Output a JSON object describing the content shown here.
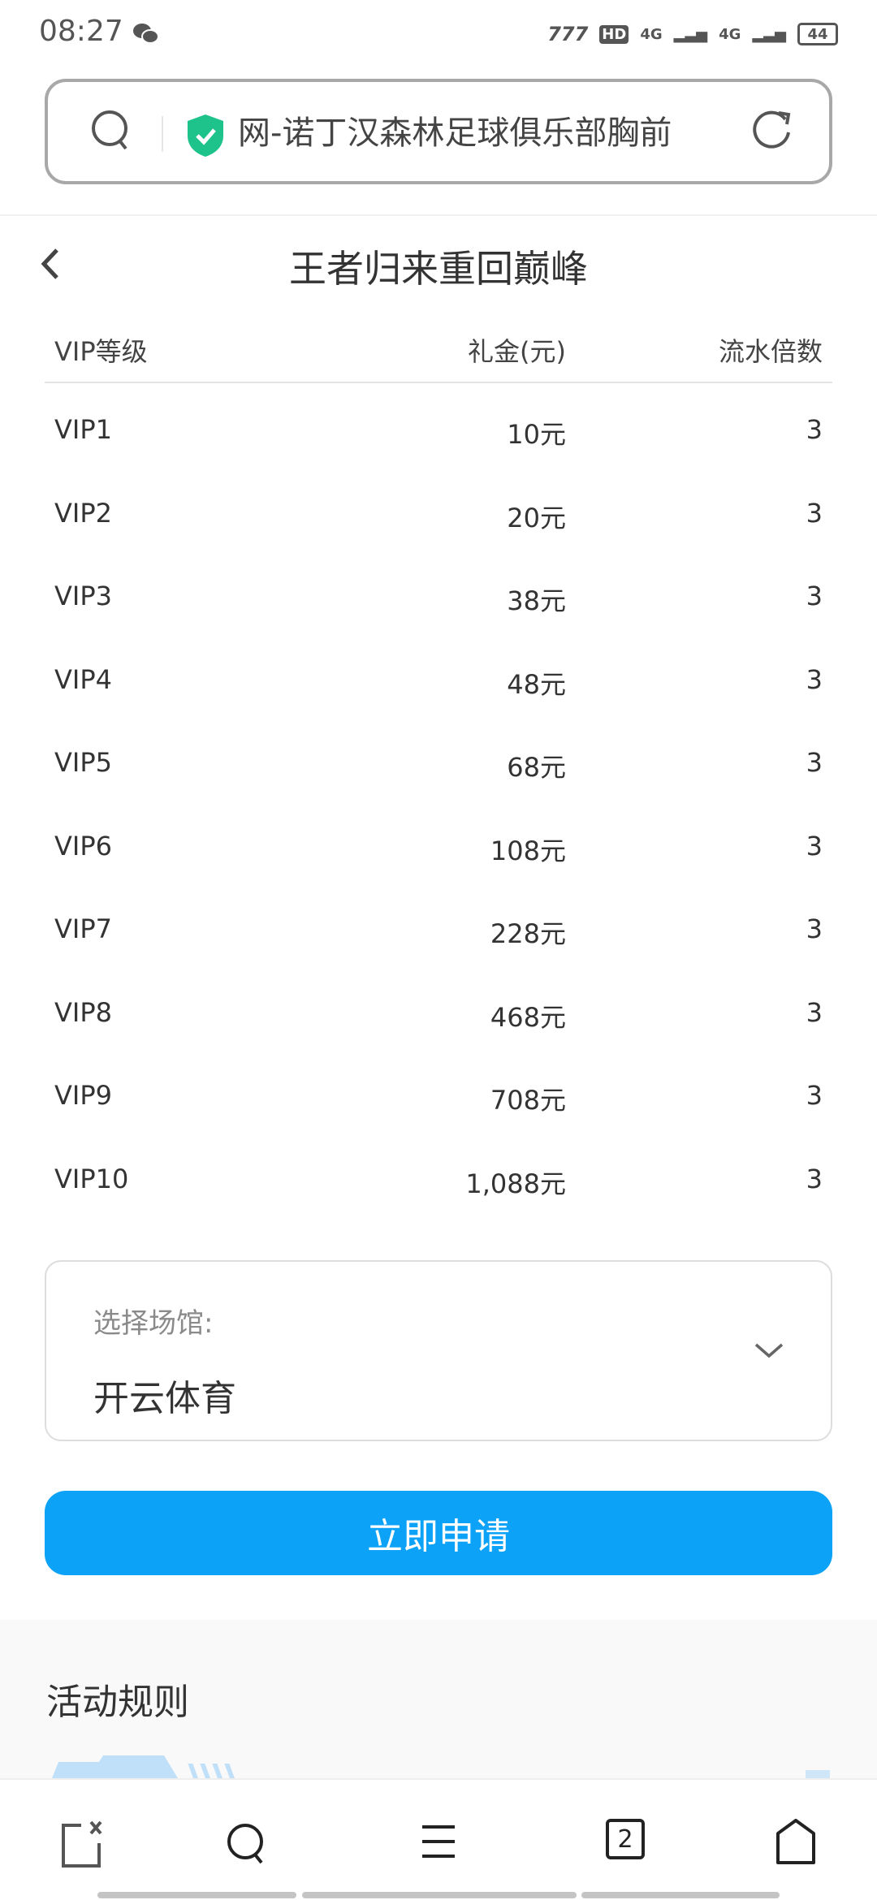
{
  "status_bar": {
    "time": "08:27",
    "battery": "44",
    "network": [
      "4G",
      "4G"
    ]
  },
  "address_bar": {
    "text": "网-诺丁汉森林足球俱乐部胸前"
  },
  "page": {
    "title": "王者归来重回巅峰"
  },
  "table": {
    "headers": [
      "VIP等级",
      "礼金(元)",
      "流水倍数"
    ],
    "rows": [
      [
        "VIP1",
        "10元",
        "3"
      ],
      [
        "VIP2",
        "20元",
        "3"
      ],
      [
        "VIP3",
        "38元",
        "3"
      ],
      [
        "VIP4",
        "48元",
        "3"
      ],
      [
        "VIP5",
        "68元",
        "3"
      ],
      [
        "VIP6",
        "108元",
        "3"
      ],
      [
        "VIP7",
        "228元",
        "3"
      ],
      [
        "VIP8",
        "468元",
        "3"
      ],
      [
        "VIP9",
        "708元",
        "3"
      ],
      [
        "VIP10",
        "1,088元",
        "3"
      ]
    ]
  },
  "venue_select": {
    "label": "选择场馆:",
    "value": "开云体育"
  },
  "apply_button": {
    "label": "立即申请"
  },
  "rules": {
    "title": "活动规则"
  },
  "bottom_nav": {
    "tabs_count": "2",
    "icons": [
      "close-tab-icon",
      "search-icon",
      "menu-icon",
      "tabs-icon",
      "home-icon"
    ]
  },
  "colors": {
    "accent": "#0ba2f7",
    "shield": "#1ec28b"
  }
}
